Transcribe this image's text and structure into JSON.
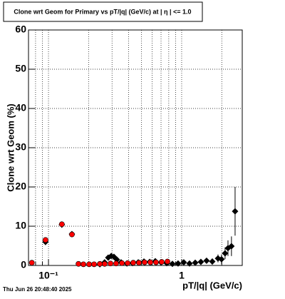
{
  "chart_data": {
    "type": "scatter",
    "title": "Clone wrt Geom for Primary vs pT/|q| (GeV/c) at |  η  | <= 1.0",
    "xlabel": "pT/|q| (GeV/c)",
    "ylabel": "Clone wrt Geom (%)",
    "footer": "Thu Jun 26 20:48:40 2025",
    "xscale": "log",
    "grid": true,
    "xlim": [
      0.0708,
      2.85
    ],
    "ylim": [
      0,
      60
    ],
    "xticks": [
      {
        "value": 0.1,
        "label": "10⁻¹"
      },
      1
    ],
    "xminorticks": [
      0.08,
      0.09,
      0.2,
      0.3,
      0.4,
      0.5,
      0.6,
      0.7,
      0.8,
      0.9,
      2
    ],
    "yticks": [
      0,
      10,
      20,
      30,
      40,
      50,
      60
    ],
    "series": [
      {
        "color": "#000000",
        "marker": "diamond",
        "x": [
          0.095,
          0.126,
          0.15,
          0.243,
          0.264,
          0.281,
          0.296,
          0.31,
          0.326,
          0.351,
          0.388,
          0.428,
          0.472,
          0.521,
          0.575,
          0.634,
          0.7,
          0.772,
          0.852,
          0.94,
          1.037,
          1.145,
          1.264,
          1.394,
          1.538,
          1.698,
          1.874,
          1.992,
          2.118,
          2.227,
          2.365,
          2.518
        ],
        "values": [
          6.0,
          10.4,
          8.0,
          0.3,
          0.8,
          2.0,
          2.4,
          2.2,
          1.5,
          0.8,
          0.5,
          0.6,
          0.8,
          1.0,
          0.9,
          1.1,
          0.8,
          0.6,
          0.4,
          0.5,
          0.8,
          0.5,
          0.7,
          0.9,
          1.2,
          1.0,
          1.8,
          1.6,
          3.1,
          4.4,
          4.9,
          13.8
        ],
        "yerr": [
          0.8,
          0.8,
          0.7,
          0.2,
          0.3,
          0.4,
          0.4,
          0.4,
          0.3,
          0.3,
          0.2,
          0.2,
          0.3,
          0.3,
          0.3,
          0.3,
          0.3,
          0.3,
          0.3,
          0.3,
          0.4,
          0.4,
          0.5,
          0.6,
          0.7,
          0.8,
          1.0,
          1.2,
          1.5,
          2.0,
          2.5,
          6.2
        ]
      },
      {
        "color": "#ff0000",
        "marker": "circle",
        "x": [
          0.075,
          0.095,
          0.126,
          0.15,
          0.168,
          0.183,
          0.202,
          0.22,
          0.243,
          0.264,
          0.292,
          0.322,
          0.356,
          0.393,
          0.433,
          0.478,
          0.527,
          0.582,
          0.642,
          0.708,
          0.782
        ],
        "values": [
          0.7,
          6.5,
          10.5,
          7.9,
          0.4,
          0.3,
          0.3,
          0.3,
          0.4,
          0.4,
          0.5,
          0.5,
          0.6,
          0.6,
          0.7,
          0.7,
          0.8,
          0.8,
          0.8,
          0.9,
          1.0
        ]
      }
    ]
  }
}
